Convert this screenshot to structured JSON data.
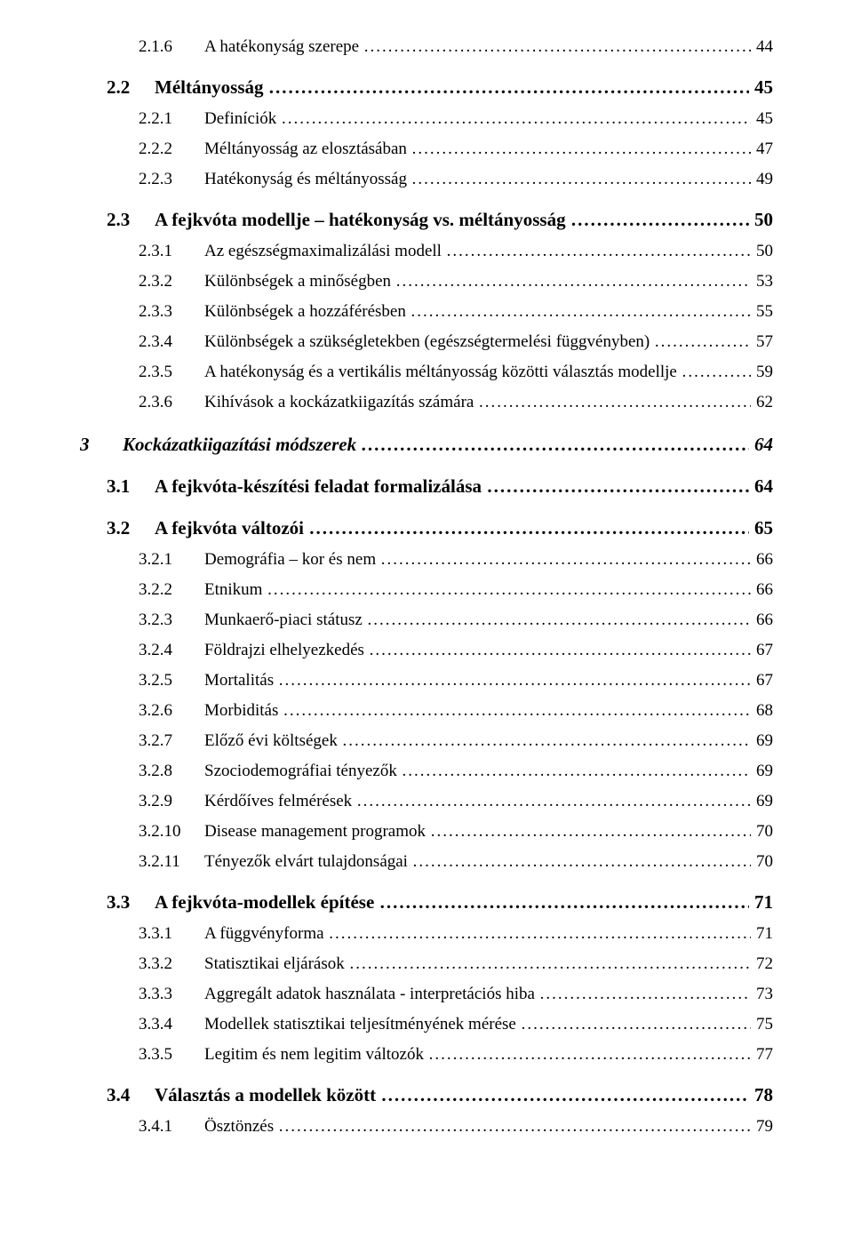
{
  "toc": [
    {
      "level": 3,
      "num": "2.1.6",
      "title": "A hatékonyság szerepe",
      "page": "44"
    },
    {
      "level": 2,
      "num": "2.2",
      "title": "Méltányosság",
      "page": "45"
    },
    {
      "level": 3,
      "num": "2.2.1",
      "title": "Definíciók",
      "page": "45"
    },
    {
      "level": 3,
      "num": "2.2.2",
      "title": "Méltányosság az elosztásában",
      "page": "47"
    },
    {
      "level": 3,
      "num": "2.2.3",
      "title": "Hatékonyság és méltányosság",
      "page": "49"
    },
    {
      "level": 2,
      "num": "2.3",
      "title": "A fejkvóta modellje – hatékonyság vs. méltányosság",
      "page": "50"
    },
    {
      "level": 3,
      "num": "2.3.1",
      "title": "Az egészségmaximalizálási modell",
      "page": "50"
    },
    {
      "level": 3,
      "num": "2.3.2",
      "title": "Különbségek a minőségben",
      "page": "53"
    },
    {
      "level": 3,
      "num": "2.3.3",
      "title": "Különbségek a hozzáférésben",
      "page": "55"
    },
    {
      "level": 3,
      "num": "2.3.4",
      "title": "Különbségek a szükségletekben (egészségtermelési függvényben)",
      "page": "57"
    },
    {
      "level": 3,
      "num": "2.3.5",
      "title": "A hatékonyság és a vertikális méltányosság közötti választás modellje",
      "page": "59"
    },
    {
      "level": 3,
      "num": "2.3.6",
      "title": "Kihívások a kockázatkiigazítás számára",
      "page": "62"
    },
    {
      "level": 1,
      "num": "3",
      "title": "Kockázatkiigazítási módszerek",
      "page": "64"
    },
    {
      "level": 2,
      "num": "3.1",
      "title": "A fejkvóta-készítési feladat formalizálása",
      "page": "64"
    },
    {
      "level": 2,
      "num": "3.2",
      "title": "A fejkvóta változói",
      "page": "65"
    },
    {
      "level": 3,
      "num": "3.2.1",
      "title": "Demográfia – kor és nem",
      "page": "66"
    },
    {
      "level": 3,
      "num": "3.2.2",
      "title": "Etnikum",
      "page": "66"
    },
    {
      "level": 3,
      "num": "3.2.3",
      "title": "Munkaerő-piaci státusz",
      "page": "66"
    },
    {
      "level": 3,
      "num": "3.2.4",
      "title": "Földrajzi elhelyezkedés",
      "page": "67"
    },
    {
      "level": 3,
      "num": "3.2.5",
      "title": "Mortalitás",
      "page": "67"
    },
    {
      "level": 3,
      "num": "3.2.6",
      "title": "Morbiditás",
      "page": "68"
    },
    {
      "level": 3,
      "num": "3.2.7",
      "title": "Előző évi költségek",
      "page": "69"
    },
    {
      "level": 3,
      "num": "3.2.8",
      "title": "Szociodemográfiai tényezők",
      "page": "69"
    },
    {
      "level": 3,
      "num": "3.2.9",
      "title": "Kérdőíves felmérések",
      "page": "69"
    },
    {
      "level": 3,
      "num": "3.2.10",
      "title": "Disease management programok",
      "page": "70"
    },
    {
      "level": 3,
      "num": "3.2.11",
      "title": "Tényezők elvárt tulajdonságai",
      "page": "70"
    },
    {
      "level": 2,
      "num": "3.3",
      "title": "A fejkvóta-modellek építése",
      "page": "71"
    },
    {
      "level": 3,
      "num": "3.3.1",
      "title": "A függvényforma",
      "page": "71"
    },
    {
      "level": 3,
      "num": "3.3.2",
      "title": "Statisztikai eljárások",
      "page": "72"
    },
    {
      "level": 3,
      "num": "3.3.3",
      "title": "Aggregált adatok használata - interpretációs hiba",
      "page": "73"
    },
    {
      "level": 3,
      "num": "3.3.4",
      "title": "Modellek statisztikai teljesítményének mérése",
      "page": "75"
    },
    {
      "level": 3,
      "num": "3.3.5",
      "title": "Legitim és nem legitim változók",
      "page": "77"
    },
    {
      "level": 2,
      "num": "3.4",
      "title": "Választás a modellek között",
      "page": "78"
    },
    {
      "level": 3,
      "num": "3.4.1",
      "title": "Ösztönzés",
      "page": "79"
    }
  ]
}
